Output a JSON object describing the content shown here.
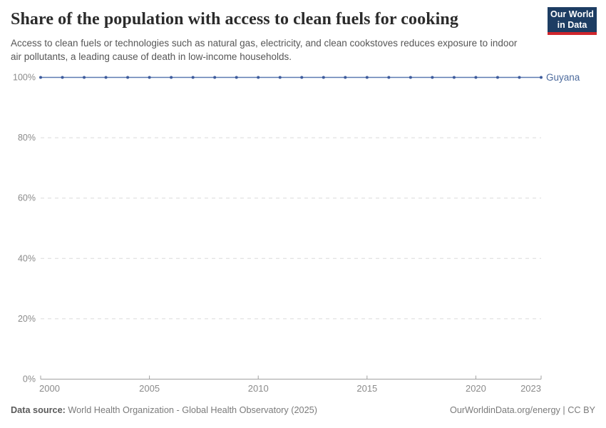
{
  "header": {
    "title": "Share of the population with access to clean fuels for cooking",
    "subtitle": "Access to clean fuels or technologies such as natural gas, electricity, and clean cookstoves reduces exposure to indoor air pollutants, a leading cause of death in low-income households.",
    "logo": {
      "line1": "Our World",
      "line2": "in Data",
      "bg_color": "#1d3d63",
      "accent_color": "#d0262c",
      "text_color": "#ffffff"
    }
  },
  "chart_data": {
    "type": "line",
    "title": "Share of the population with access to clean fuels for cooking",
    "xlabel": "",
    "ylabel": "",
    "x": [
      2000,
      2001,
      2002,
      2003,
      2004,
      2005,
      2006,
      2007,
      2008,
      2009,
      2010,
      2011,
      2012,
      2013,
      2014,
      2015,
      2016,
      2017,
      2018,
      2019,
      2020,
      2021,
      2022,
      2023
    ],
    "series": [
      {
        "name": "Guyana",
        "values": [
          100,
          100,
          100,
          100,
          100,
          100,
          100,
          100,
          100,
          100,
          100,
          100,
          100,
          100,
          100,
          100,
          100,
          100,
          100,
          100,
          100,
          100,
          100,
          100
        ]
      }
    ],
    "xlim": [
      2000,
      2023
    ],
    "ylim": [
      0,
      100
    ],
    "yticks": [
      0,
      20,
      40,
      60,
      80,
      100
    ],
    "ytick_labels": [
      "0%",
      "20%",
      "40%",
      "60%",
      "80%",
      "100%"
    ],
    "xticks": [
      2000,
      2005,
      2010,
      2015,
      2020,
      2023
    ],
    "grid": "horizontal-dashed",
    "legend_position": "end-of-line"
  },
  "colors": {
    "line": "#5b7ab1",
    "marker": "#3d5b9c",
    "entity_label": "#4c6a9c",
    "grid": "#dadada",
    "axis": "#a1a1a1"
  },
  "footer": {
    "datasource_label": "Data source:",
    "datasource_text": " World Health Organization - Global Health Observatory (2025)",
    "attribution": "OurWorldinData.org/energy | CC BY"
  }
}
